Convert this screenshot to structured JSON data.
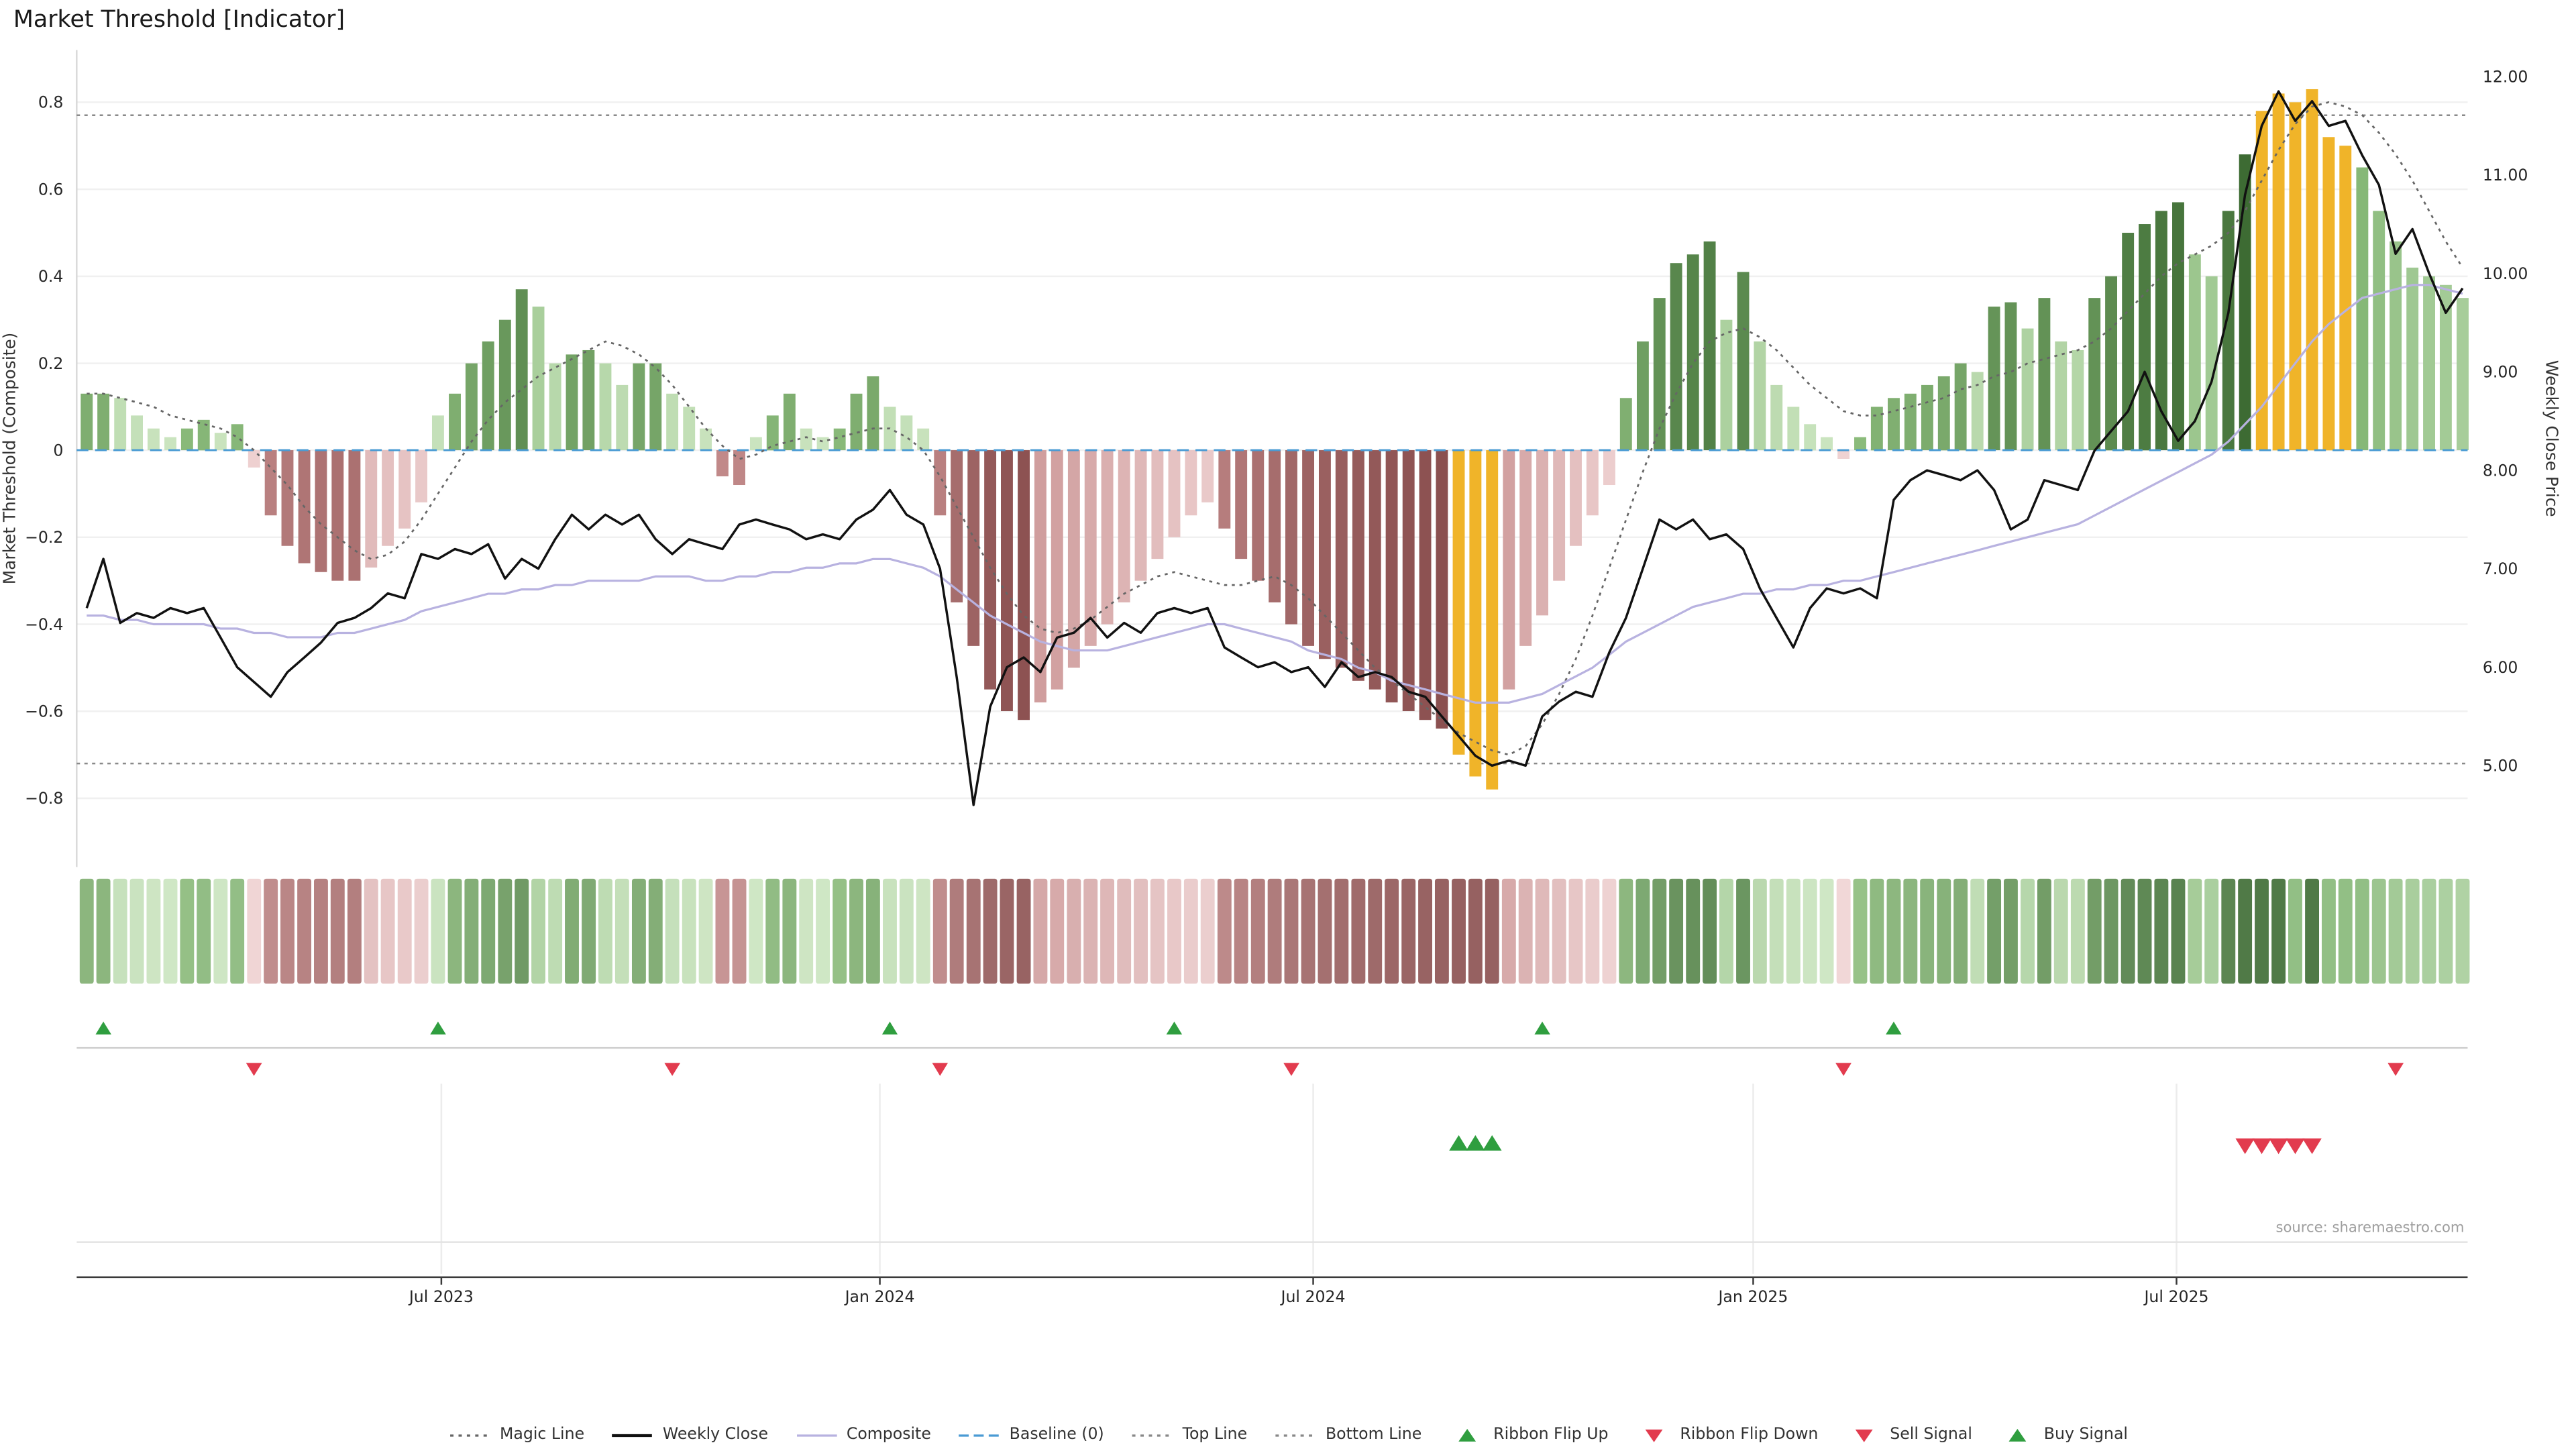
{
  "source_text": "source: sharemaestro.com",
  "chart_data": {
    "type": "mixed-bar-line",
    "title": "Market Threshold [Indicator]",
    "ylabel_left": "Market Threshold (Composite)",
    "ylabel_right": "Weekly Close Price",
    "left_axis": {
      "tick_values": [
        0.8,
        0.6,
        0.4,
        0.2,
        0,
        -0.2,
        -0.4,
        -0.6,
        -0.8
      ],
      "tick_labels": [
        "0.8",
        "0.6",
        "0.4",
        "0.2",
        "0",
        "−0.2",
        "−0.4",
        "−0.6",
        "−0.8"
      ],
      "lim": [
        -0.958,
        0.92
      ]
    },
    "right_axis": {
      "tick_values": [
        12,
        11,
        10,
        9,
        8,
        7,
        6,
        5
      ],
      "tick_labels": [
        "12.00",
        "11.00",
        "10.00",
        "9.00",
        "8.00",
        "7.00",
        "6.00",
        "5.00"
      ],
      "lim": [
        3.97,
        12.27
      ]
    },
    "x_axis": {
      "tick_labels": [
        "Jul 2023",
        "Jan 2024",
        "Jul 2024",
        "Jan 2025",
        "Jul 2025"
      ],
      "tick_weeks": [
        21.2,
        47.4,
        73.3,
        99.6,
        124.9
      ]
    },
    "n_weeks": 143,
    "series": {
      "threshold_bars": [
        0.13,
        0.13,
        0.12,
        0.08,
        0.05,
        0.03,
        0.05,
        0.07,
        0.04,
        0.06,
        -0.04,
        -0.15,
        -0.22,
        -0.26,
        -0.28,
        -0.3,
        -0.3,
        -0.27,
        -0.22,
        -0.18,
        -0.12,
        0.08,
        0.13,
        0.2,
        0.25,
        0.3,
        0.37,
        0.33,
        0.2,
        0.22,
        0.23,
        0.2,
        0.15,
        0.2,
        0.2,
        0.13,
        0.1,
        0.05,
        -0.06,
        -0.08,
        0.03,
        0.08,
        0.13,
        0.05,
        0.03,
        0.05,
        0.13,
        0.17,
        0.1,
        0.08,
        0.05,
        -0.15,
        -0.35,
        -0.45,
        -0.55,
        -0.6,
        -0.62,
        -0.58,
        -0.55,
        -0.5,
        -0.45,
        -0.4,
        -0.35,
        -0.3,
        -0.25,
        -0.2,
        -0.15,
        -0.12,
        -0.18,
        -0.25,
        -0.3,
        -0.35,
        -0.4,
        -0.45,
        -0.48,
        -0.5,
        -0.53,
        -0.55,
        -0.58,
        -0.6,
        -0.62,
        -0.64,
        -0.7,
        -0.75,
        -0.78,
        -0.55,
        -0.45,
        -0.38,
        -0.3,
        -0.22,
        -0.15,
        -0.08,
        0.12,
        0.25,
        0.35,
        0.43,
        0.45,
        0.48,
        0.3,
        0.41,
        0.25,
        0.15,
        0.1,
        0.06,
        0.03,
        -0.02,
        0.03,
        0.1,
        0.12,
        0.13,
        0.15,
        0.17,
        0.2,
        0.18,
        0.33,
        0.34,
        0.28,
        0.35,
        0.25,
        0.23,
        0.35,
        0.4,
        0.5,
        0.52,
        0.55,
        0.57,
        0.45,
        0.4,
        0.55,
        0.68,
        0.78,
        0.82,
        0.8,
        0.83,
        0.72,
        0.7,
        0.65,
        0.55,
        0.48,
        0.42,
        0.4,
        0.38,
        0.35
      ],
      "weekly_close": [
        6.6,
        7.1,
        6.45,
        6.55,
        6.5,
        6.6,
        6.55,
        6.6,
        6.3,
        6.0,
        5.85,
        5.7,
        5.95,
        6.1,
        6.25,
        6.45,
        6.5,
        6.6,
        6.75,
        6.7,
        7.15,
        7.1,
        7.2,
        7.15,
        7.25,
        6.9,
        7.1,
        7.0,
        7.3,
        7.55,
        7.4,
        7.55,
        7.45,
        7.55,
        7.3,
        7.15,
        7.3,
        7.25,
        7.2,
        7.45,
        7.5,
        7.45,
        7.4,
        7.3,
        7.35,
        7.3,
        7.5,
        7.6,
        7.8,
        7.55,
        7.45,
        7.0,
        5.9,
        4.6,
        5.6,
        6.0,
        6.1,
        5.95,
        6.3,
        6.35,
        6.5,
        6.3,
        6.45,
        6.35,
        6.55,
        6.6,
        6.55,
        6.6,
        6.2,
        6.1,
        6.0,
        6.05,
        5.95,
        6.0,
        5.8,
        6.05,
        5.9,
        5.95,
        5.9,
        5.75,
        5.7,
        5.5,
        5.3,
        5.1,
        5.0,
        5.05,
        5.0,
        5.5,
        5.65,
        5.75,
        5.7,
        6.15,
        6.5,
        7.0,
        7.5,
        7.4,
        7.5,
        7.3,
        7.35,
        7.2,
        6.8,
        6.5,
        6.2,
        6.6,
        6.8,
        6.75,
        6.8,
        6.7,
        7.7,
        7.9,
        8.0,
        7.95,
        7.9,
        8.0,
        7.8,
        7.4,
        7.5,
        7.9,
        7.85,
        7.8,
        8.2,
        8.4,
        8.6,
        9.0,
        8.6,
        8.3,
        8.5,
        8.9,
        9.6,
        10.8,
        11.5,
        11.85,
        11.55,
        11.75,
        11.5,
        11.55,
        11.2,
        10.9,
        10.2,
        10.45,
        10.0,
        9.6,
        9.85
      ],
      "composite": [
        -0.38,
        -0.38,
        -0.39,
        -0.39,
        -0.4,
        -0.4,
        -0.4,
        -0.4,
        -0.41,
        -0.41,
        -0.42,
        -0.42,
        -0.43,
        -0.43,
        -0.43,
        -0.42,
        -0.42,
        -0.41,
        -0.4,
        -0.39,
        -0.37,
        -0.36,
        -0.35,
        -0.34,
        -0.33,
        -0.33,
        -0.32,
        -0.32,
        -0.31,
        -0.31,
        -0.3,
        -0.3,
        -0.3,
        -0.3,
        -0.29,
        -0.29,
        -0.29,
        -0.3,
        -0.3,
        -0.29,
        -0.29,
        -0.28,
        -0.28,
        -0.27,
        -0.27,
        -0.26,
        -0.26,
        -0.25,
        -0.25,
        -0.26,
        -0.27,
        -0.29,
        -0.32,
        -0.35,
        -0.38,
        -0.4,
        -0.42,
        -0.44,
        -0.45,
        -0.46,
        -0.46,
        -0.46,
        -0.45,
        -0.44,
        -0.43,
        -0.42,
        -0.41,
        -0.4,
        -0.4,
        -0.41,
        -0.42,
        -0.43,
        -0.44,
        -0.46,
        -0.47,
        -0.48,
        -0.5,
        -0.51,
        -0.53,
        -0.54,
        -0.55,
        -0.56,
        -0.57,
        -0.58,
        -0.58,
        -0.58,
        -0.57,
        -0.56,
        -0.54,
        -0.52,
        -0.5,
        -0.47,
        -0.44,
        -0.42,
        -0.4,
        -0.38,
        -0.36,
        -0.35,
        -0.34,
        -0.33,
        -0.33,
        -0.32,
        -0.32,
        -0.31,
        -0.31,
        -0.3,
        -0.3,
        -0.29,
        -0.28,
        -0.27,
        -0.26,
        -0.25,
        -0.24,
        -0.23,
        -0.22,
        -0.21,
        -0.2,
        -0.19,
        -0.18,
        -0.17,
        -0.15,
        -0.13,
        -0.11,
        -0.09,
        -0.07,
        -0.05,
        -0.03,
        -0.01,
        0.02,
        0.06,
        0.1,
        0.15,
        0.2,
        0.25,
        0.29,
        0.32,
        0.35,
        0.36,
        0.37,
        0.38,
        0.38,
        0.37,
        0.36
      ],
      "magic_line": [
        0.13,
        0.13,
        0.12,
        0.11,
        0.1,
        0.08,
        0.07,
        0.06,
        0.05,
        0.03,
        0.0,
        -0.04,
        -0.08,
        -0.13,
        -0.17,
        -0.2,
        -0.23,
        -0.25,
        -0.24,
        -0.21,
        -0.16,
        -0.1,
        -0.04,
        0.02,
        0.07,
        0.11,
        0.14,
        0.17,
        0.19,
        0.21,
        0.23,
        0.25,
        0.24,
        0.22,
        0.19,
        0.15,
        0.1,
        0.05,
        0.01,
        -0.02,
        -0.01,
        0.01,
        0.02,
        0.03,
        0.02,
        0.03,
        0.04,
        0.05,
        0.05,
        0.03,
        0.0,
        -0.06,
        -0.13,
        -0.2,
        -0.27,
        -0.33,
        -0.38,
        -0.41,
        -0.42,
        -0.41,
        -0.39,
        -0.36,
        -0.33,
        -0.31,
        -0.29,
        -0.28,
        -0.29,
        -0.3,
        -0.31,
        -0.31,
        -0.3,
        -0.29,
        -0.31,
        -0.34,
        -0.38,
        -0.42,
        -0.46,
        -0.5,
        -0.53,
        -0.56,
        -0.59,
        -0.62,
        -0.65,
        -0.67,
        -0.69,
        -0.7,
        -0.68,
        -0.63,
        -0.56,
        -0.48,
        -0.38,
        -0.27,
        -0.16,
        -0.05,
        0.05,
        0.13,
        0.2,
        0.25,
        0.27,
        0.28,
        0.26,
        0.23,
        0.19,
        0.15,
        0.12,
        0.09,
        0.08,
        0.08,
        0.09,
        0.1,
        0.11,
        0.12,
        0.14,
        0.15,
        0.17,
        0.18,
        0.2,
        0.21,
        0.22,
        0.23,
        0.25,
        0.28,
        0.32,
        0.36,
        0.4,
        0.43,
        0.45,
        0.47,
        0.5,
        0.55,
        0.62,
        0.69,
        0.75,
        0.79,
        0.8,
        0.79,
        0.77,
        0.73,
        0.68,
        0.62,
        0.55,
        0.48,
        0.42
      ]
    },
    "reference_lines": {
      "top_line": 0.77,
      "baseline": 0,
      "bottom_line": -0.72
    },
    "highlight_gold_weeks": [
      82,
      83,
      84,
      130,
      131,
      132,
      133,
      134,
      135
    ],
    "signals": {
      "ribbon_flip_up_weeks": [
        1,
        21,
        48,
        65,
        87,
        108
      ],
      "ribbon_flip_down_weeks": [
        10,
        35,
        51,
        72,
        105,
        138
      ],
      "buy_signal_weeks": [
        82,
        83,
        84
      ],
      "sell_signal_weeks": [
        129,
        130,
        131,
        132,
        133
      ]
    },
    "legend": [
      {
        "label": "Magic Line",
        "type": "dotted",
        "color": "#666666"
      },
      {
        "label": "Weekly Close",
        "type": "solid",
        "color": "#111111"
      },
      {
        "label": "Composite",
        "type": "solid",
        "color": "#b8b2e0"
      },
      {
        "label": "Baseline (0)",
        "type": "dashed",
        "color": "#4a9bd4"
      },
      {
        "label": "Top Line",
        "type": "dotted",
        "color": "#888888"
      },
      {
        "label": "Bottom Line",
        "type": "dotted",
        "color": "#888888"
      },
      {
        "label": "Ribbon Flip Up",
        "type": "triangle-up",
        "color": "#2f9e3f"
      },
      {
        "label": "Ribbon Flip Down",
        "type": "triangle-down",
        "color": "#e23b4e"
      },
      {
        "label": "Sell Signal",
        "type": "triangle-down",
        "color": "#e23b4e"
      },
      {
        "label": "Buy Signal",
        "type": "triangle-up",
        "color": "#2f9e3f"
      }
    ],
    "colors": {
      "green_dark": "#3d6b33",
      "green_mid": "#8fbf7f",
      "green_light_dark": "#86b877",
      "green_light": "#cde6c2",
      "red_dark": "#8a4f4f",
      "red_mid": "#c78f8f",
      "red_light_dark": "#cc9898",
      "red_light": "#f0d4d4",
      "gold": "#f0b429",
      "weekly_close": "#111111",
      "composite": "#b8b2e0",
      "magic": "#666666",
      "baseline": "#4a9bd4",
      "bound_lines": "#8a8a8a",
      "flip_up": "#2f9e3f",
      "flip_down": "#e23b4e",
      "buy": "#2f9e3f",
      "sell": "#e23b4e"
    }
  }
}
